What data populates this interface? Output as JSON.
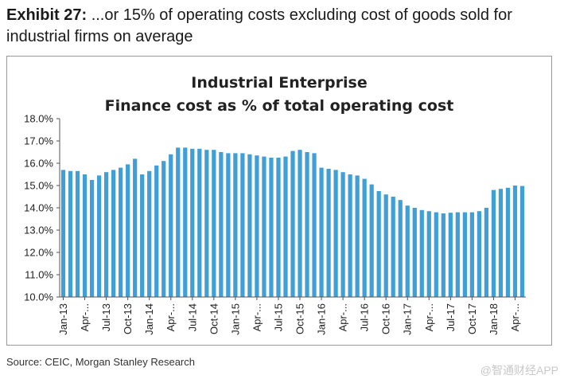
{
  "exhibit": {
    "label": "Exhibit 27:",
    "text": " ...or 15% of operating costs excluding cost of goods sold for industrial firms on average"
  },
  "source": "Source: CEIC, Morgan Stanley Research",
  "watermark": "@智通财经APP",
  "colors": {
    "bar": "#3f9fd6",
    "axis": "#555555",
    "text": "#222222"
  },
  "chart_data": {
    "type": "bar",
    "title": [
      "Industrial Enterprise",
      "Finance cost as % of total operating cost"
    ],
    "ylabel": "",
    "xlabel": "",
    "ylim": [
      10.0,
      18.0
    ],
    "ytick_step": 1.0,
    "yticks": [
      "10.0%",
      "11.0%",
      "12.0%",
      "13.0%",
      "14.0%",
      "15.0%",
      "16.0%",
      "17.0%",
      "18.0%"
    ],
    "grid": false,
    "xtick_labels": [
      "Jan-13",
      "Apr-...",
      "Jul-13",
      "Oct-13",
      "Jan-14",
      "Apr-...",
      "Jul-14",
      "Oct-14",
      "Jan-15",
      "Apr-...",
      "Jul-15",
      "Oct-15",
      "Jan-16",
      "Apr-...",
      "Jul-16",
      "Oct-16",
      "Jan-17",
      "Apr-...",
      "Jul-17",
      "Oct-17",
      "Jan-18",
      "Apr-..."
    ],
    "tick_every": 3,
    "categories": [
      "Jan-13",
      "Feb-13",
      "Mar-13",
      "Apr-13",
      "May-13",
      "Jun-13",
      "Jul-13",
      "Aug-13",
      "Sep-13",
      "Oct-13",
      "Nov-13",
      "Dec-13",
      "Jan-14",
      "Feb-14",
      "Mar-14",
      "Apr-14",
      "May-14",
      "Jun-14",
      "Jul-14",
      "Aug-14",
      "Sep-14",
      "Oct-14",
      "Nov-14",
      "Dec-14",
      "Jan-15",
      "Feb-15",
      "Mar-15",
      "Apr-15",
      "May-15",
      "Jun-15",
      "Jul-15",
      "Aug-15",
      "Sep-15",
      "Oct-15",
      "Nov-15",
      "Dec-15",
      "Jan-16",
      "Feb-16",
      "Mar-16",
      "Apr-16",
      "May-16",
      "Jun-16",
      "Jul-16",
      "Aug-16",
      "Sep-16",
      "Oct-16",
      "Nov-16",
      "Dec-16",
      "Jan-17",
      "Feb-17",
      "Mar-17",
      "Apr-17",
      "May-17",
      "Jun-17",
      "Jul-17",
      "Aug-17",
      "Sep-17",
      "Oct-17",
      "Nov-17",
      "Dec-17",
      "Jan-18",
      "Feb-18",
      "Mar-18",
      "Apr-18",
      "May-18"
    ],
    "values": [
      15.7,
      15.65,
      15.65,
      15.5,
      15.25,
      15.45,
      15.6,
      15.7,
      15.8,
      15.95,
      16.2,
      15.5,
      15.65,
      15.9,
      16.1,
      16.4,
      16.7,
      16.7,
      16.65,
      16.65,
      16.6,
      16.6,
      16.5,
      16.45,
      16.45,
      16.45,
      16.4,
      16.35,
      16.3,
      16.25,
      16.25,
      16.3,
      16.55,
      16.6,
      16.5,
      16.45,
      15.8,
      15.75,
      15.7,
      15.6,
      15.5,
      15.45,
      15.3,
      15.05,
      14.75,
      14.6,
      14.5,
      14.35,
      14.1,
      14.0,
      13.9,
      13.85,
      13.8,
      13.75,
      13.78,
      13.8,
      13.8,
      13.8,
      13.85,
      14.0,
      14.8,
      14.85,
      14.9,
      15.0,
      14.98
    ]
  }
}
